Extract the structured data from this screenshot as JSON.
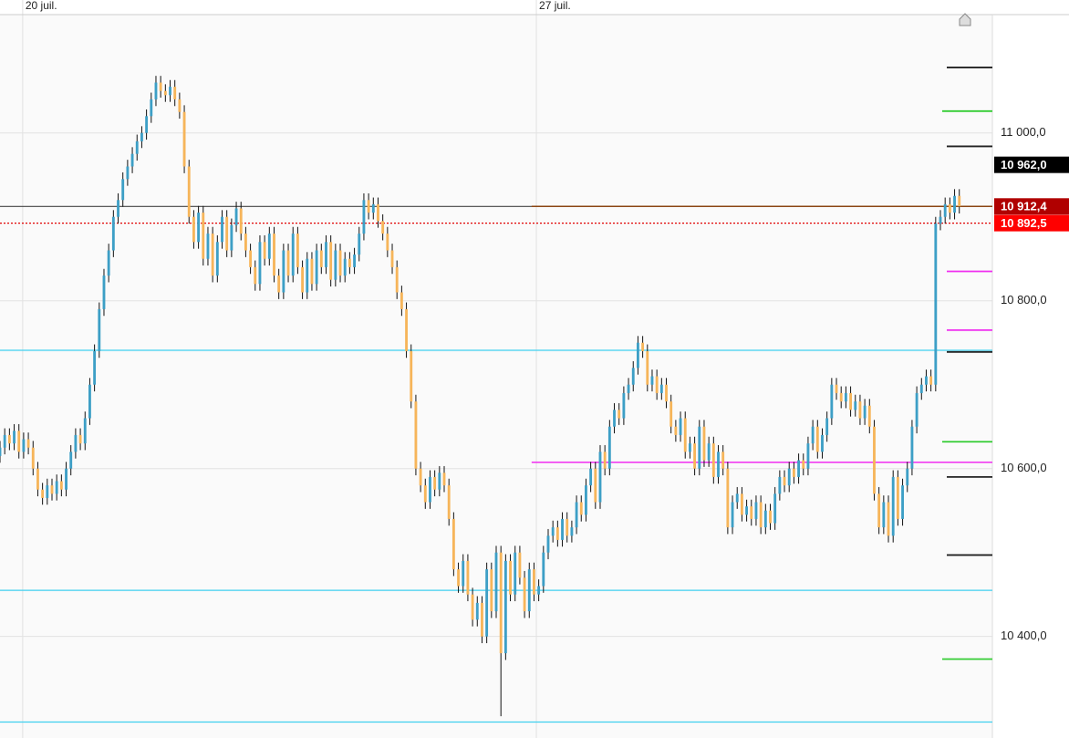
{
  "chart_data": {
    "type": "candlestick",
    "xlim": [
      0,
      210
    ],
    "xticks": [
      {
        "value": 4.8,
        "label": "20 juil."
      },
      {
        "value": 113.5,
        "label": "27 juil."
      }
    ],
    "ylim": [
      10279,
      11141
    ],
    "yticks": [
      {
        "value": 10400,
        "label": "10 400,0"
      },
      {
        "value": 10600,
        "label": "10 600,0"
      },
      {
        "value": 10800,
        "label": "10 800,0"
      },
      {
        "value": 11000,
        "label": "11 000,0"
      }
    ],
    "grid": true,
    "up_color": "#3d9fc6",
    "down_color": "#f6b55a",
    "wick_color": "#111111",
    "open": [
      10615,
      10625,
      10640,
      10630,
      10645,
      10620,
      10635,
      10625,
      10600,
      10575,
      10565,
      10580,
      10570,
      10585,
      10575,
      10600,
      10620,
      10640,
      10630,
      10660,
      10700,
      10740,
      10790,
      10830,
      10860,
      10900,
      10920,
      10945,
      10960,
      10975,
      10990,
      11000,
      11020,
      11040,
      11060,
      11050,
      11045,
      11055,
      11040,
      11025,
      10960,
      10900,
      10870,
      10905,
      10850,
      10880,
      10830,
      10870,
      10900,
      10860,
      10890,
      10910,
      10880,
      10860,
      10840,
      10820,
      10870,
      10850,
      10880,
      10830,
      10810,
      10860,
      10830,
      10880,
      10840,
      10810,
      10850,
      10820,
      10860,
      10840,
      10870,
      10825,
      10860,
      10830,
      10850,
      10840,
      10855,
      10880,
      10920,
      10905,
      10915,
      10895,
      10880,
      10860,
      10840,
      10810,
      10790,
      10740,
      10680,
      10600,
      10580,
      10560,
      10590,
      10575,
      10595,
      10580,
      10540,
      10480,
      10460,
      10490,
      10450,
      10420,
      10440,
      10400,
      10480,
      10430,
      10500,
      10380,
      10490,
      10450,
      10500,
      10470,
      10430,
      10480,
      10450,
      10460,
      10500,
      10520,
      10530,
      10515,
      10540,
      10520,
      10530,
      10560,
      10545,
      10580,
      10600,
      10560,
      10620,
      10600,
      10650,
      10670,
      10660,
      10690,
      10700,
      10720,
      10750,
      10740,
      10700,
      10710,
      10690,
      10700,
      10680,
      10650,
      10640,
      10660,
      10620,
      10630,
      10600,
      10650,
      10610,
      10630,
      10590,
      10620,
      10600,
      10530,
      10560,
      10570,
      10545,
      10555,
      10540,
      10560,
      10530,
      10550,
      10535,
      10570,
      10590,
      10580,
      10600,
      10590,
      10610,
      10600,
      10630,
      10650,
      10620,
      10640,
      10660,
      10700,
      10690,
      10680,
      10690,
      10670,
      10680,
      10660,
      10675,
      10650,
      10570,
      10530,
      10560,
      10520,
      10590,
      10540,
      10580,
      10600,
      10650,
      10690,
      10700,
      10710,
      10700,
      10892,
      10900,
      10915,
      10905,
      10925
    ],
    "high": [
      10633,
      10648,
      10648,
      10653,
      10653,
      10643,
      10643,
      10633,
      10608,
      10583,
      10588,
      10588,
      10593,
      10593,
      10608,
      10628,
      10648,
      10648,
      10668,
      10708,
      10748,
      10798,
      10838,
      10868,
      10908,
      10928,
      10953,
      10968,
      10983,
      10998,
      11008,
      11028,
      11048,
      11068,
      11068,
      11058,
      11063,
      11063,
      11048,
      11033,
      10968,
      10908,
      10913,
      10913,
      10888,
      10888,
      10878,
      10908,
      10908,
      10898,
      10918,
      10918,
      10888,
      10868,
      10848,
      10878,
      10878,
      10888,
      10888,
      10838,
      10868,
      10868,
      10888,
      10888,
      10848,
      10858,
      10858,
      10868,
      10868,
      10878,
      10878,
      10868,
      10868,
      10858,
      10858,
      10863,
      10888,
      10928,
      10928,
      10923,
      10923,
      10903,
      10888,
      10868,
      10848,
      10818,
      10798,
      10748,
      10688,
      10608,
      10588,
      10598,
      10598,
      10603,
      10603,
      10588,
      10548,
      10488,
      10498,
      10498,
      10458,
      10448,
      10448,
      10488,
      10488,
      10508,
      10508,
      10498,
      10498,
      10508,
      10508,
      10478,
      10488,
      10488,
      10468,
      10508,
      10528,
      10538,
      10538,
      10548,
      10548,
      10538,
      10568,
      10568,
      10588,
      10608,
      10608,
      10628,
      10628,
      10658,
      10678,
      10678,
      10698,
      10708,
      10728,
      10758,
      10758,
      10748,
      10718,
      10718,
      10708,
      10708,
      10688,
      10658,
      10668,
      10668,
      10638,
      10638,
      10658,
      10658,
      10638,
      10638,
      10628,
      10628,
      10608,
      10568,
      10578,
      10578,
      10563,
      10563,
      10568,
      10568,
      10558,
      10558,
      10578,
      10598,
      10598,
      10608,
      10608,
      10618,
      10618,
      10638,
      10658,
      10658,
      10648,
      10668,
      10708,
      10708,
      10698,
      10698,
      10698,
      10688,
      10688,
      10683,
      10683,
      10658,
      10578,
      10568,
      10568,
      10598,
      10598,
      10588,
      10608,
      10658,
      10698,
      10708,
      10718,
      10718,
      10900,
      10908,
      10923,
      10923,
      10933,
      10933
    ],
    "low": [
      10607,
      10617,
      10622,
      10622,
      10612,
      10612,
      10617,
      10592,
      10567,
      10557,
      10557,
      10562,
      10562,
      10567,
      10567,
      10592,
      10612,
      10622,
      10622,
      10652,
      10692,
      10732,
      10782,
      10822,
      10852,
      10892,
      10912,
      10937,
      10952,
      10967,
      10982,
      10992,
      11012,
      11032,
      11042,
      11037,
      11037,
      11032,
      11017,
      10952,
      10892,
      10862,
      10862,
      10842,
      10842,
      10822,
      10822,
      10862,
      10852,
      10852,
      10882,
      10872,
      10852,
      10832,
      10812,
      10812,
      10842,
      10842,
      10822,
      10802,
      10802,
      10822,
      10822,
      10832,
      10802,
      10802,
      10812,
      10812,
      10832,
      10832,
      10817,
      10817,
      10822,
      10822,
      10832,
      10832,
      10847,
      10872,
      10897,
      10897,
      10887,
      10872,
      10852,
      10832,
      10802,
      10782,
      10732,
      10672,
      10592,
      10572,
      10552,
      10552,
      10567,
      10567,
      10572,
      10532,
      10472,
      10452,
      10452,
      10442,
      10412,
      10412,
      10392,
      10392,
      10422,
      10422,
      10305,
      10372,
      10442,
      10442,
      10462,
      10422,
      10422,
      10442,
      10442,
      10452,
      10492,
      10512,
      10507,
      10507,
      10512,
      10512,
      10522,
      10537,
      10537,
      10572,
      10552,
      10552,
      10592,
      10592,
      10642,
      10652,
      10652,
      10682,
      10692,
      10712,
      10732,
      10692,
      10692,
      10682,
      10682,
      10672,
      10642,
      10632,
      10632,
      10612,
      10612,
      10592,
      10592,
      10602,
      10602,
      10582,
      10582,
      10592,
      10522,
      10522,
      10552,
      10537,
      10537,
      10532,
      10532,
      10522,
      10522,
      10527,
      10527,
      10562,
      10572,
      10572,
      10582,
      10582,
      10592,
      10592,
      10622,
      10612,
      10612,
      10632,
      10652,
      10682,
      10672,
      10672,
      10662,
      10662,
      10652,
      10652,
      10642,
      10562,
      10522,
      10522,
      10512,
      10512,
      10532,
      10532,
      10572,
      10592,
      10642,
      10682,
      10692,
      10692,
      10692,
      10884,
      10892,
      10897,
      10897,
      10904
    ],
    "close": [
      10625,
      10640,
      10630,
      10645,
      10620,
      10635,
      10625,
      10600,
      10575,
      10565,
      10580,
      10570,
      10585,
      10575,
      10600,
      10620,
      10640,
      10630,
      10660,
      10700,
      10740,
      10790,
      10830,
      10860,
      10900,
      10920,
      10945,
      10960,
      10975,
      10990,
      11000,
      11020,
      11040,
      11060,
      11050,
      11045,
      11055,
      11040,
      11025,
      10960,
      10900,
      10870,
      10905,
      10850,
      10880,
      10830,
      10870,
      10900,
      10860,
      10890,
      10910,
      10880,
      10860,
      10840,
      10820,
      10870,
      10850,
      10880,
      10830,
      10810,
      10860,
      10830,
      10880,
      10840,
      10810,
      10850,
      10820,
      10860,
      10840,
      10870,
      10825,
      10860,
      10830,
      10850,
      10840,
      10855,
      10880,
      10920,
      10905,
      10915,
      10895,
      10880,
      10860,
      10840,
      10810,
      10790,
      10740,
      10680,
      10600,
      10580,
      10560,
      10590,
      10575,
      10595,
      10580,
      10540,
      10480,
      10460,
      10490,
      10450,
      10420,
      10440,
      10400,
      10480,
      10430,
      10500,
      10380,
      10490,
      10450,
      10500,
      10470,
      10430,
      10480,
      10450,
      10460,
      10500,
      10520,
      10530,
      10515,
      10540,
      10520,
      10530,
      10560,
      10545,
      10580,
      10600,
      10560,
      10620,
      10600,
      10650,
      10670,
      10660,
      10690,
      10700,
      10720,
      10750,
      10740,
      10700,
      10710,
      10690,
      10700,
      10680,
      10650,
      10640,
      10660,
      10620,
      10630,
      10600,
      10650,
      10610,
      10630,
      10590,
      10620,
      10600,
      10530,
      10560,
      10570,
      10545,
      10555,
      10540,
      10560,
      10530,
      10550,
      10535,
      10570,
      10590,
      10580,
      10600,
      10590,
      10610,
      10600,
      10630,
      10650,
      10620,
      10640,
      10660,
      10700,
      10690,
      10680,
      10690,
      10670,
      10680,
      10660,
      10675,
      10650,
      10570,
      10530,
      10560,
      10520,
      10590,
      10540,
      10580,
      10600,
      10650,
      10690,
      10700,
      10710,
      10700,
      10892,
      10900,
      10915,
      10905,
      10925,
      10912.4
    ],
    "hlines": [
      {
        "value": 10912.4,
        "color": "#444444"
      },
      {
        "value": 10912.4,
        "color": "#8b4513",
        "from": 112.5
      },
      {
        "value": 10892.5,
        "color": "#e00000",
        "dash": true
      },
      {
        "value": 10741,
        "color": "#3fd0f0"
      },
      {
        "value": 10455,
        "color": "#3fd0f0"
      },
      {
        "value": 10298,
        "color": "#3fd0f0"
      },
      {
        "value": 10607.6,
        "color": "#f030f0",
        "from": 112.5
      }
    ],
    "markers": [
      {
        "value": 11078,
        "color": "#222222"
      },
      {
        "value": 10984,
        "color": "#222222"
      },
      {
        "value": 10739,
        "color": "#222222"
      },
      {
        "value": 10590,
        "color": "#222222"
      },
      {
        "value": 10497,
        "color": "#222222"
      },
      {
        "value": 11026,
        "color": "#33cc33"
      },
      {
        "value": 10632,
        "color": "#33cc33"
      },
      {
        "value": 10373,
        "color": "#33cc33"
      },
      {
        "value": 10835,
        "color": "#f030f0"
      },
      {
        "value": 10765,
        "color": "#f030f0"
      }
    ],
    "price_labels": [
      {
        "value": 10962,
        "label": "10 962,0",
        "color": "#000000"
      },
      {
        "value": 10912.4,
        "label": "10 912,4",
        "color": "#b00000"
      },
      {
        "value": 10892.5,
        "label": "10 892,5",
        "color": "#ff0000"
      }
    ]
  }
}
